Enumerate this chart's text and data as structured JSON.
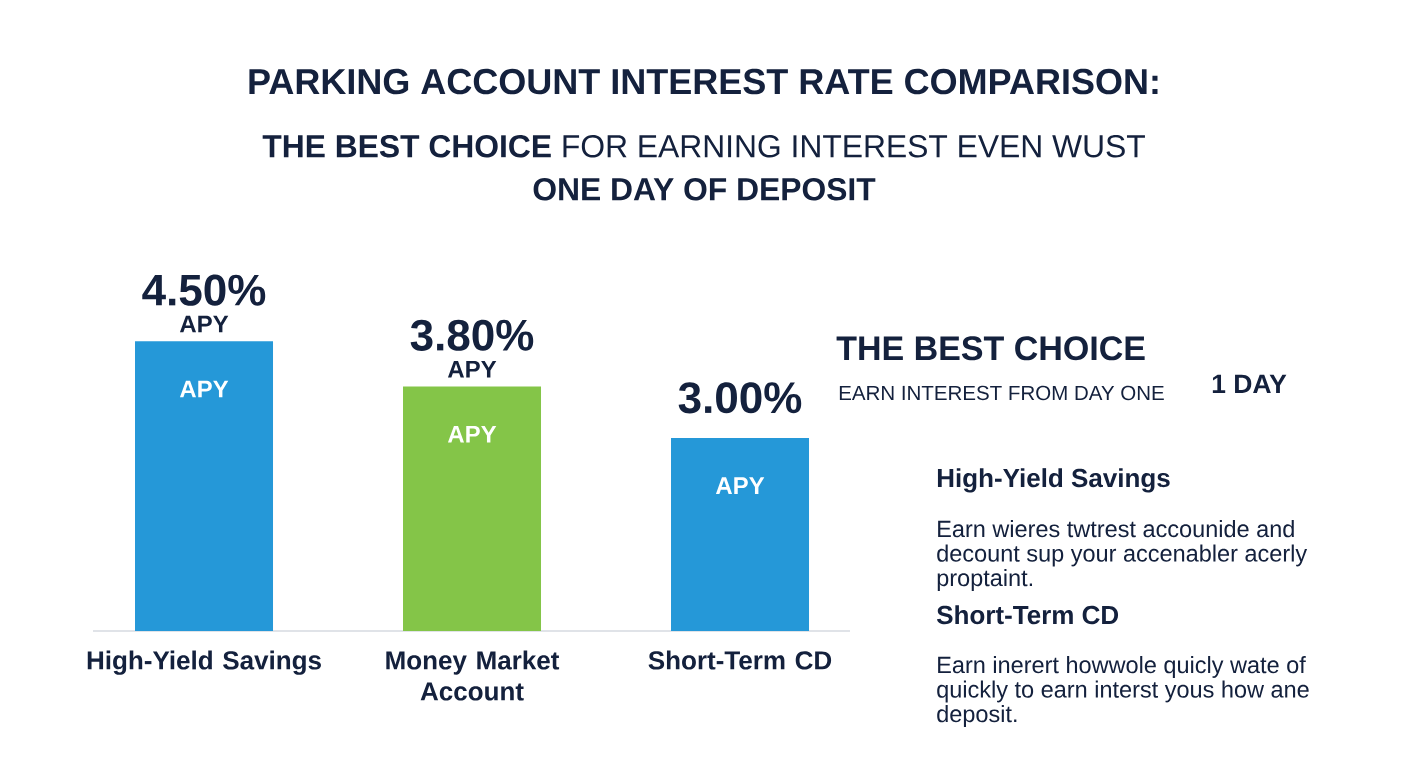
{
  "chart_data": {
    "type": "bar",
    "title": "PARKING ACCOUNT INTEREST RATE COMPARISON:",
    "subtitle": "**THE BEST CHOICE** FOR EARNING INTEREST EVEN WUST **ONE DAY OF DEPOSIT**",
    "categories": [
      "High-Yield Savings",
      "Money Market Account",
      "Short-Term CD"
    ],
    "values": [
      4.5,
      3.8,
      3.0
    ],
    "colors": [
      "#2598d8",
      "#84c548",
      "#2598d8"
    ],
    "value_labels": [
      "4.50%",
      "3.80%",
      "3.00%"
    ],
    "tick_labels": "x",
    "annotations": [
      "APY",
      "APY",
      "APY",
      "APY",
      "APY",
      "THE BEST CHOICE",
      "EARN INTEREST FROM DAY ONE",
      "1 DAY",
      "High-Yield Savings",
      "Earn wieres twtrest accounide and decount sup your accenabler acerly proptaint.",
      "Short-Term CD",
      "Earn inerert howwole quicly wate of quickly to earn interst yous how ane deposit."
    ]
  }
}
